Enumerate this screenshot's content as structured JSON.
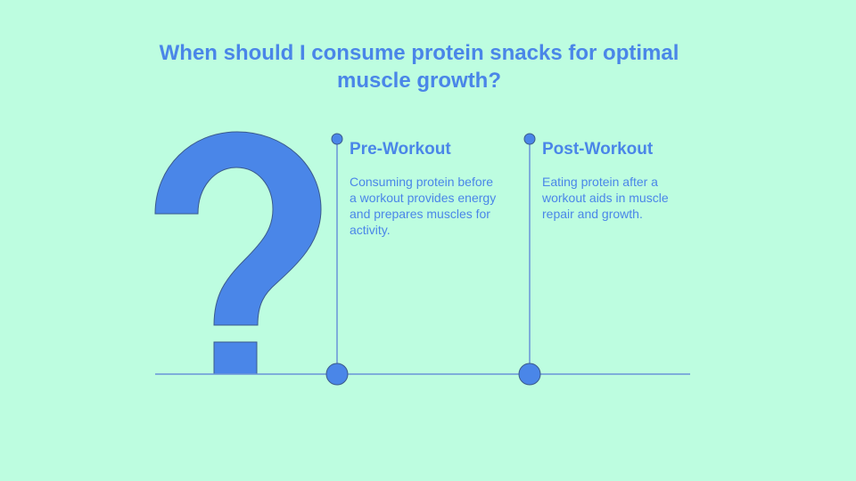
{
  "title": "When should I consume protein snacks for optimal muscle growth?",
  "colors": {
    "background": "#bdfde0",
    "accent": "#4a86e8",
    "outline": "#3b5b8c"
  },
  "icon": "question-mark-icon",
  "steps": [
    {
      "title": "Pre-Workout",
      "text": "Consuming protein before a workout provides energy and prepares muscles for activity."
    },
    {
      "title": "Post-Workout",
      "text": "Eating protein after a workout aids in muscle repair and growth."
    }
  ]
}
